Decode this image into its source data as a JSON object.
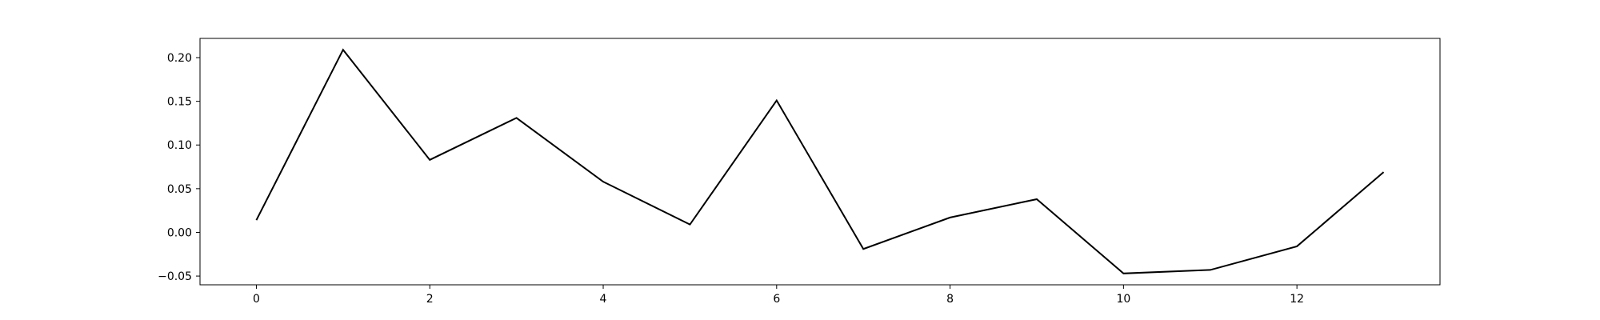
{
  "chart_data": {
    "type": "line",
    "title": "",
    "xlabel": "",
    "ylabel": "",
    "xlim": [
      -0.65,
      13.65
    ],
    "ylim": [
      -0.06,
      0.222
    ],
    "x_ticks": [
      0,
      2,
      4,
      6,
      8,
      10,
      12
    ],
    "x_tick_labels": [
      "0",
      "2",
      "4",
      "6",
      "8",
      "10",
      "12"
    ],
    "y_ticks": [
      -0.05,
      0.0,
      0.05,
      0.1,
      0.15,
      0.2
    ],
    "y_tick_labels": [
      "−0.05",
      "0.00",
      "0.05",
      "0.10",
      "0.15",
      "0.20"
    ],
    "grid": false,
    "series": [
      {
        "color": "#000000",
        "x": [
          0,
          1,
          2,
          3,
          4,
          5,
          6,
          7,
          8,
          9,
          10,
          11,
          12,
          13
        ],
        "values": [
          0.014,
          0.209,
          0.083,
          0.131,
          0.058,
          0.009,
          0.151,
          -0.019,
          0.017,
          0.038,
          -0.047,
          -0.043,
          -0.016,
          0.069
        ]
      }
    ]
  }
}
